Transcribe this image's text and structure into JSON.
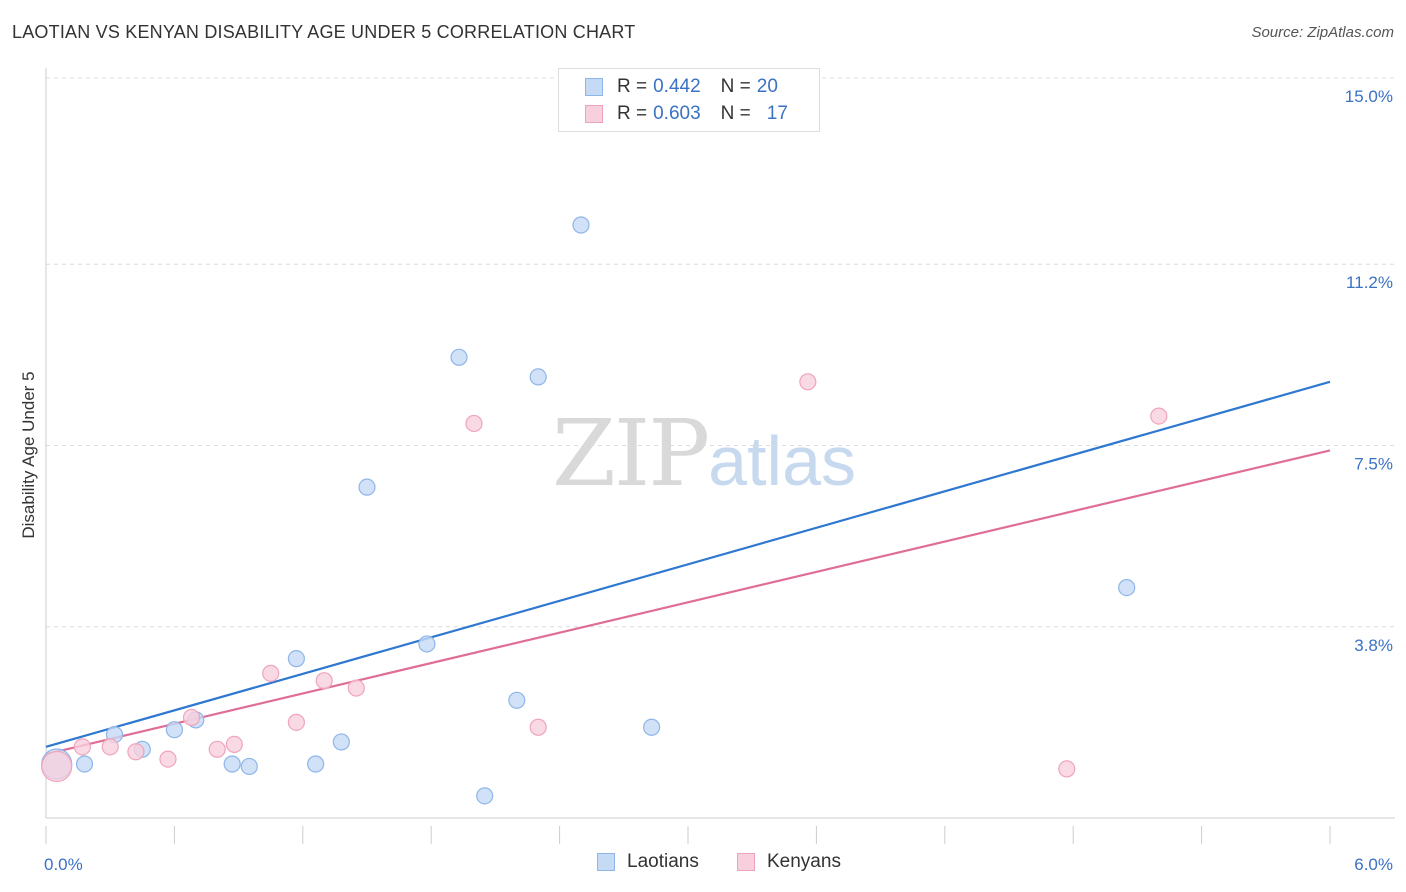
{
  "title": "LAOTIAN VS KENYAN DISABILITY AGE UNDER 5 CORRELATION CHART",
  "source": "Source: ZipAtlas.com",
  "watermark": {
    "zip": "ZIP",
    "atlas": "atlas"
  },
  "legend": {
    "rows": [
      {
        "r_label": "R =",
        "r_value": "0.442",
        "n_label": "N =",
        "n_value": "20"
      },
      {
        "r_label": "R =",
        "r_value": "0.603",
        "n_label": "N =",
        "n_value": "17"
      }
    ]
  },
  "chart_data": {
    "type": "scatter",
    "title": "LAOTIAN VS KENYAN DISABILITY AGE UNDER 5 CORRELATION CHART",
    "xlabel": "",
    "ylabel": "Disability Age Under 5",
    "xlim": [
      0,
      6.0
    ],
    "ylim": [
      0,
      15.0
    ],
    "x_tick_labels": [
      "0.0%",
      "6.0%"
    ],
    "y_ticks": [
      3.8,
      7.5,
      11.2,
      15.0
    ],
    "y_tick_labels": [
      "3.8%",
      "7.5%",
      "11.2%",
      "15.0%"
    ],
    "colors": {
      "laotians": "#8fb6e8",
      "laotians_fill": "#c5daf5",
      "laotians_line": "#2f78d0",
      "kenyans": "#f0a4bc",
      "kenyans_fill": "#f8cfdc",
      "kenyans_line": "#e06d98"
    },
    "series": [
      {
        "name": "Laotians",
        "points": [
          [
            0.05,
            1.0
          ],
          [
            0.18,
            1.0
          ],
          [
            0.32,
            1.6
          ],
          [
            0.45,
            1.3
          ],
          [
            0.6,
            1.7
          ],
          [
            0.7,
            1.9
          ],
          [
            0.87,
            1.0
          ],
          [
            0.95,
            0.95
          ],
          [
            1.17,
            3.15
          ],
          [
            1.26,
            1.0
          ],
          [
            1.38,
            1.45
          ],
          [
            1.5,
            6.65
          ],
          [
            1.78,
            3.45
          ],
          [
            1.93,
            9.3
          ],
          [
            2.05,
            0.35
          ],
          [
            2.2,
            2.3
          ],
          [
            2.3,
            8.9
          ],
          [
            2.5,
            12.0
          ],
          [
            2.83,
            1.75
          ],
          [
            5.05,
            4.6
          ]
        ],
        "trend": {
          "x": [
            0,
            6.0
          ],
          "y": [
            1.35,
            8.8
          ]
        }
      },
      {
        "name": "Kenyans",
        "points": [
          [
            0.05,
            0.95
          ],
          [
            0.17,
            1.35
          ],
          [
            0.3,
            1.35
          ],
          [
            0.42,
            1.25
          ],
          [
            0.57,
            1.1
          ],
          [
            0.68,
            1.95
          ],
          [
            0.8,
            1.3
          ],
          [
            0.88,
            1.4
          ],
          [
            1.05,
            2.85
          ],
          [
            1.17,
            1.85
          ],
          [
            1.3,
            2.7
          ],
          [
            1.45,
            2.55
          ],
          [
            2.0,
            7.95
          ],
          [
            2.3,
            1.75
          ],
          [
            3.56,
            8.8
          ],
          [
            4.77,
            0.9
          ],
          [
            5.2,
            8.1
          ]
        ],
        "trend": {
          "x": [
            0,
            6.0
          ],
          "y": [
            1.2,
            7.4
          ]
        }
      }
    ],
    "bottom_legend": [
      "Laotians",
      "Kenyans"
    ]
  }
}
